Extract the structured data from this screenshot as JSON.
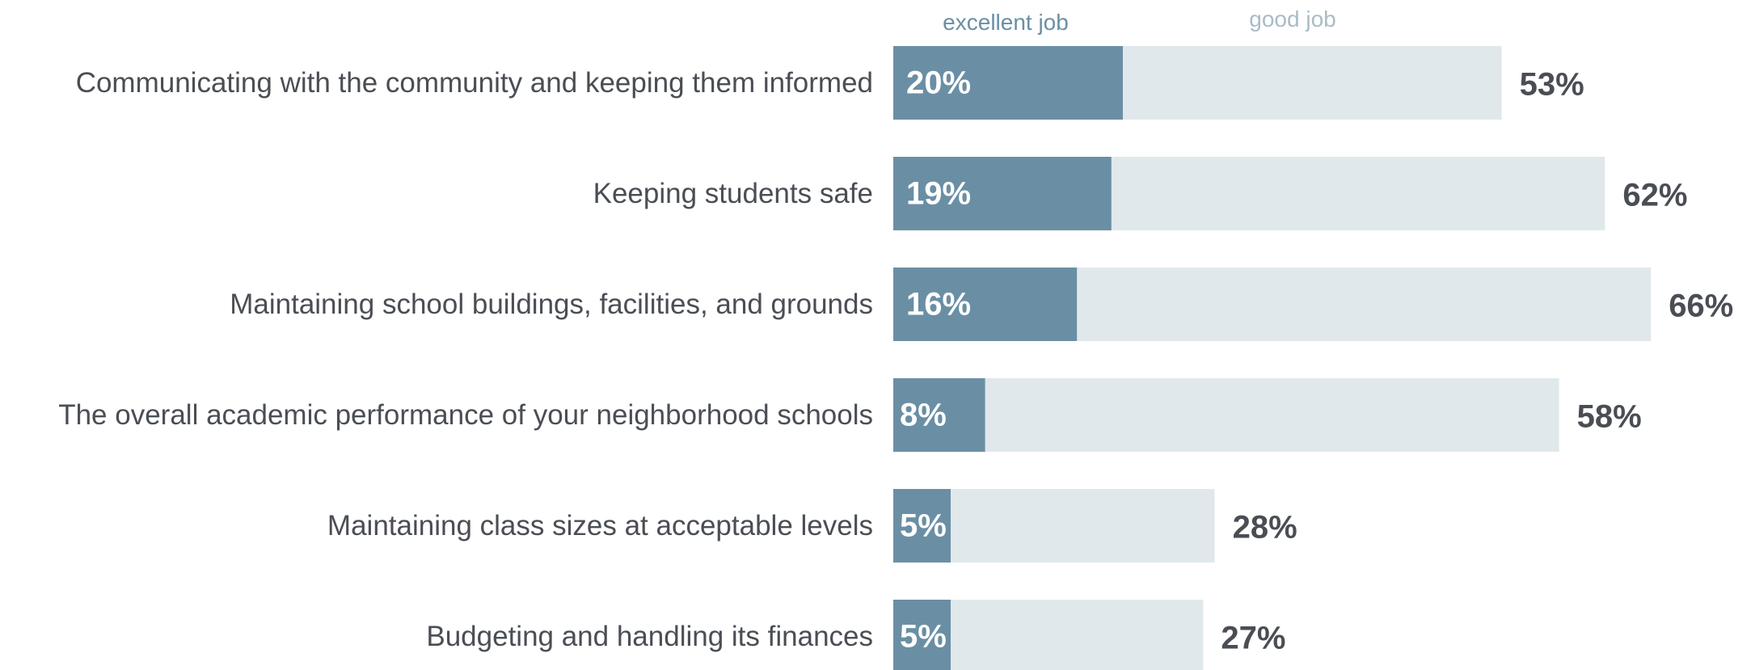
{
  "chart_data": {
    "type": "bar",
    "orientation": "horizontal",
    "stacked": true,
    "categories": [
      "Communicating with the community and keeping them informed",
      "Keeping students safe",
      "Maintaining school buildings, facilities, and grounds",
      "The overall academic performance of your neighborhood schools",
      "Maintaining class sizes at acceptable levels",
      "Budgeting and handling its finances"
    ],
    "series": [
      {
        "name": "excellent job",
        "values": [
          20,
          19,
          16,
          8,
          5,
          5
        ],
        "labels": [
          "20%",
          "19%",
          "16%",
          "8%",
          "5%",
          "5%"
        ],
        "color": "#6a8fa4"
      },
      {
        "name": "good job",
        "values": [
          33,
          43,
          50,
          50,
          23,
          22
        ],
        "color": "#e1e8ec"
      }
    ],
    "totals": [
      53,
      62,
      66,
      58,
      28,
      27
    ],
    "total_labels": [
      "53%",
      "62%",
      "66%",
      "58%",
      "28%",
      "27%"
    ],
    "title": "",
    "xlabel": "",
    "ylabel": "",
    "xlim": [
      0,
      66
    ],
    "grid": false,
    "legend": "top",
    "colors": {
      "label_text": "#4a4e54",
      "inner_label": "#ffffff",
      "total_label": "#4a4e54",
      "legend_excellent": "#6a8fa4",
      "legend_good": "#a9bcc7"
    }
  }
}
